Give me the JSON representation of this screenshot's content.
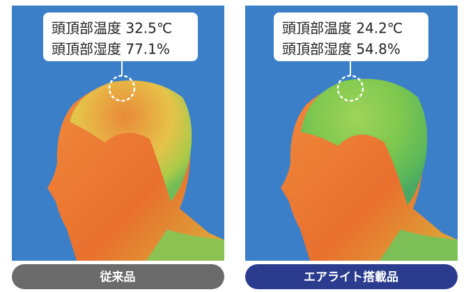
{
  "panels": [
    {
      "lines": [
        "頭頂部温度 32.5℃",
        "頭頂部湿度 77.1%"
      ],
      "caption": "従来品"
    },
    {
      "lines": [
        "頭頂部温度 24.2℃",
        "頭頂部湿度 54.8%"
      ],
      "caption": "エアライト搭載品"
    }
  ]
}
